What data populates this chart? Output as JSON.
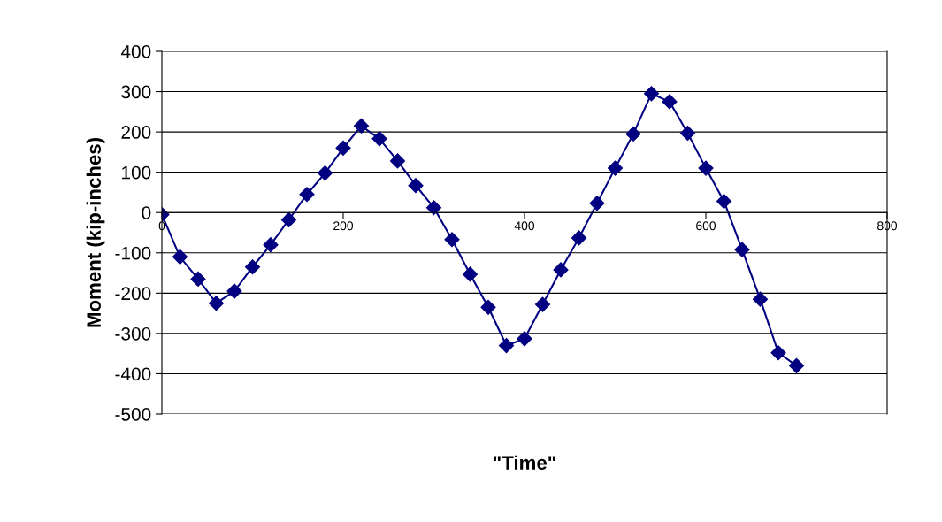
{
  "chart_data": {
    "type": "line",
    "xlabel": "\"Time\"",
    "ylabel": "Moment (kip-inches)",
    "x": [
      0,
      20,
      40,
      60,
      80,
      100,
      120,
      140,
      160,
      180,
      200,
      220,
      240,
      260,
      280,
      300,
      320,
      340,
      360,
      380,
      400,
      420,
      440,
      460,
      480,
      500,
      520,
      540,
      560,
      580,
      600,
      620,
      640,
      660,
      680,
      700
    ],
    "series": [
      {
        "color": "#000080",
        "values": [
          -5,
          -110,
          -165,
          -225,
          -195,
          -135,
          -80,
          -18,
          45,
          98,
          160,
          215,
          183,
          128,
          67,
          12,
          -67,
          -153,
          -235,
          -330,
          -313,
          -228,
          -142,
          -63,
          23,
          110,
          195,
          295,
          275,
          197,
          110,
          28,
          -92,
          -215,
          -348,
          -380
        ]
      }
    ],
    "xlim": [
      0,
      800
    ],
    "xticks": [
      0,
      200,
      400,
      600,
      800
    ],
    "ylim": [
      -500,
      400
    ],
    "yticks": [
      -500,
      -400,
      -300,
      -200,
      -100,
      0,
      100,
      200,
      300,
      400
    ],
    "grid": "y",
    "legend": false,
    "marker": "diamond",
    "line_style": "solid"
  }
}
